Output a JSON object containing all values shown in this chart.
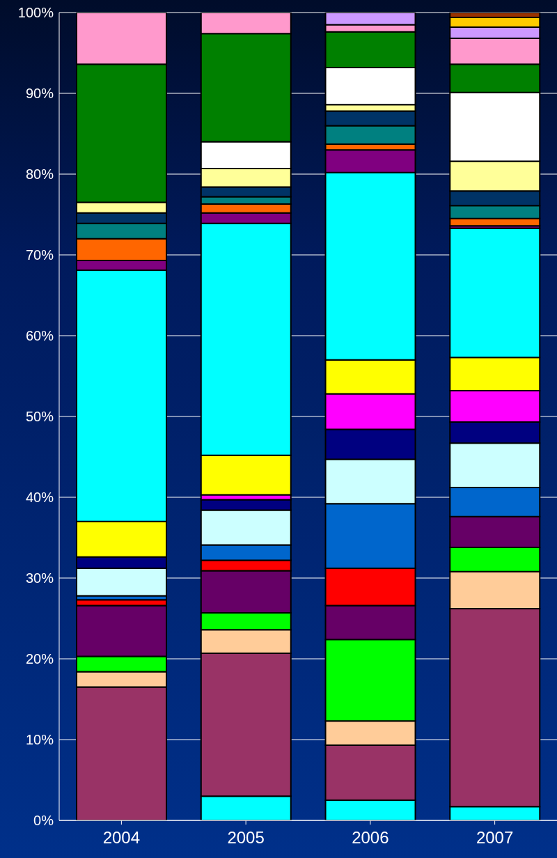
{
  "chart_data": {
    "type": "bar",
    "stacked": true,
    "categories": [
      "2004",
      "2005",
      "2006",
      "2007"
    ],
    "ylim": [
      0,
      100
    ],
    "yticks": [
      {
        "value": 0,
        "label": "0%"
      },
      {
        "value": 10,
        "label": "10%"
      },
      {
        "value": 20,
        "label": "20%"
      },
      {
        "value": 30,
        "label": "30%"
      },
      {
        "value": 40,
        "label": "40%"
      },
      {
        "value": 50,
        "label": "50%"
      },
      {
        "value": 60,
        "label": "60%"
      },
      {
        "value": 70,
        "label": "70%"
      },
      {
        "value": 80,
        "label": "80%"
      },
      {
        "value": 90,
        "label": "90%"
      },
      {
        "value": 100,
        "label": "100%"
      }
    ],
    "grid": "y",
    "legend": false,
    "series": [
      {
        "color": "#00ffff",
        "values": [
          0,
          3.0,
          2.5,
          1.7
        ]
      },
      {
        "color": "#993366",
        "values": [
          16.5,
          17.7,
          6.8,
          24.5
        ]
      },
      {
        "color": "#ffcc99",
        "values": [
          1.9,
          2.9,
          3.0,
          4.6
        ]
      },
      {
        "color": "#00ff00",
        "values": [
          1.9,
          2.1,
          10.1,
          3.0
        ]
      },
      {
        "color": "#660066",
        "values": [
          6.3,
          5.2,
          4.2,
          3.8
        ]
      },
      {
        "color": "#ff0000",
        "values": [
          0.7,
          1.3,
          4.6,
          null
        ]
      },
      {
        "color": "#0066cc",
        "values": [
          0.5,
          1.9,
          8.0,
          3.6
        ]
      },
      {
        "color": "#ccffff",
        "values": [
          3.4,
          4.3,
          5.5,
          5.5
        ]
      },
      {
        "color": "#000080",
        "values": [
          1.4,
          1.3,
          3.7,
          2.6
        ]
      },
      {
        "color": "#ff00ff",
        "values": [
          0,
          0.6,
          4.4,
          3.9
        ]
      },
      {
        "color": "#ffff00",
        "values": [
          4.4,
          4.9,
          4.2,
          4.1
        ]
      },
      {
        "color": "#00ffff",
        "values": [
          31.1,
          28.7,
          23.2,
          16.0
        ]
      },
      {
        "color": "#800080",
        "values": [
          1.2,
          1.3,
          2.8,
          0.3
        ]
      },
      {
        "color": "#ff6600",
        "values": [
          2.7,
          1.1,
          0.7,
          0.9
        ]
      },
      {
        "color": "#008080",
        "values": [
          1.9,
          0.9,
          2.3,
          1.6
        ]
      },
      {
        "color": "#003366",
        "values": [
          1.3,
          1.2,
          1.8,
          1.8
        ]
      },
      {
        "color": "#ffff99",
        "values": [
          1.3,
          2.3,
          0.8,
          3.7
        ]
      },
      {
        "color": "#ffffff",
        "values": [
          0,
          3.3,
          4.6,
          8.5
        ]
      },
      {
        "color": "#008000",
        "values": [
          17.1,
          13.4,
          4.4,
          3.5
        ]
      },
      {
        "color": "#ff99cc",
        "values": [
          6.4,
          2.6,
          0.9,
          3.2
        ]
      },
      {
        "color": "#cc99ff",
        "values": [
          0,
          0,
          1.5,
          1.4
        ]
      },
      {
        "color": "#ffcc00",
        "values": [
          0,
          0,
          0,
          1.2
        ]
      },
      {
        "color": "#993300",
        "values": [
          0,
          0,
          0,
          0.6
        ]
      }
    ]
  }
}
